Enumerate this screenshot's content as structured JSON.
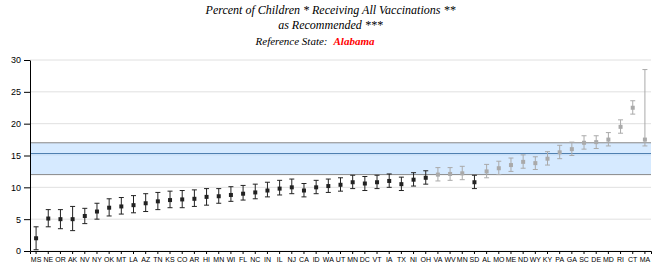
{
  "chart_data": {
    "type": "errorbar",
    "title": "Percent of Children * Receiving All Vaccinations **",
    "subtitle": "as Recommended ***",
    "annotations": [
      {
        "text": "Reference State:"
      },
      {
        "text": "Alabama",
        "color": "red"
      }
    ],
    "categories": [
      "MS",
      "NE",
      "OR",
      "AK",
      "NV",
      "NY",
      "OK",
      "MT",
      "LA",
      "AZ",
      "TN",
      "KS",
      "CO",
      "AR",
      "HI",
      "MN",
      "WI",
      "FL",
      "NC",
      "IN",
      "IL",
      "NJ",
      "CA",
      "ID",
      "WA",
      "UT",
      "MN",
      "DC",
      "VT",
      "IA",
      "TX",
      "NI",
      "OH",
      "VA",
      "WV",
      "MN",
      "SD",
      "AL",
      "MO",
      "ME",
      "ND",
      "WY",
      "KY",
      "PA",
      "GA",
      "SC",
      "DE",
      "MD",
      "RI",
      "CT",
      "MA"
    ],
    "values": [
      2.0,
      5.1,
      5.0,
      5.0,
      5.5,
      6.2,
      6.8,
      7.0,
      7.2,
      7.5,
      7.8,
      8.0,
      8.1,
      8.2,
      8.5,
      8.6,
      8.8,
      9.0,
      9.2,
      9.5,
      9.8,
      10.0,
      9.5,
      10.0,
      10.2,
      10.4,
      10.8,
      10.6,
      10.8,
      11.0,
      10.5,
      11.2,
      11.5,
      12.0,
      12.1,
      12.2,
      10.8,
      12.5,
      13.0,
      13.5,
      14.0,
      13.8,
      14.5,
      15.5,
      16.0,
      17.0,
      17.1,
      17.5,
      19.5,
      22.5,
      17.5
    ],
    "ci_lower": [
      0.2,
      3.8,
      3.5,
      3.2,
      4.3,
      5.0,
      5.5,
      5.8,
      6.0,
      6.2,
      6.5,
      6.8,
      6.8,
      7.0,
      7.2,
      7.5,
      7.8,
      8.0,
      8.2,
      8.5,
      8.8,
      9.0,
      8.5,
      9.0,
      9.2,
      9.4,
      9.8,
      9.5,
      9.8,
      10.0,
      9.5,
      10.2,
      10.5,
      11.0,
      11.1,
      11.2,
      9.8,
      11.5,
      12.0,
      12.5,
      13.0,
      12.8,
      13.5,
      14.5,
      15.0,
      16.0,
      16.1,
      16.5,
      18.5,
      21.5,
      16.5
    ],
    "ci_upper": [
      3.8,
      6.5,
      6.5,
      7.0,
      6.7,
      7.5,
      8.2,
      8.4,
      8.7,
      9.0,
      9.2,
      9.4,
      9.5,
      9.6,
      9.8,
      9.8,
      10.1,
      10.3,
      10.5,
      10.8,
      11.1,
      11.3,
      10.6,
      11.1,
      11.3,
      11.5,
      11.9,
      11.7,
      11.9,
      12.1,
      11.6,
      12.3,
      12.6,
      13.1,
      13.1,
      13.3,
      11.9,
      13.6,
      14.1,
      14.6,
      15.1,
      14.8,
      15.6,
      16.6,
      17.1,
      18.1,
      18.1,
      18.6,
      20.6,
      23.6,
      28.5
    ],
    "colors": [
      "#222222",
      "#222222",
      "#222222",
      "#222222",
      "#222222",
      "#222222",
      "#222222",
      "#222222",
      "#222222",
      "#222222",
      "#222222",
      "#222222",
      "#222222",
      "#222222",
      "#222222",
      "#222222",
      "#222222",
      "#222222",
      "#222222",
      "#222222",
      "#222222",
      "#222222",
      "#222222",
      "#222222",
      "#222222",
      "#222222",
      "#222222",
      "#222222",
      "#222222",
      "#222222",
      "#222222",
      "#222222",
      "#222222",
      "#aaaaaa",
      "#aaaaaa",
      "#aaaaaa",
      "#222222",
      "#aaaaaa",
      "#aaaaaa",
      "#aaaaaa",
      "#aaaaaa",
      "#aaaaaa",
      "#aaaaaa",
      "#aaaaaa",
      "#aaaaaa",
      "#aaaaaa",
      "#aaaaaa",
      "#aaaaaa",
      "#aaaaaa",
      "#aaaaaa",
      "#aaaaaa"
    ],
    "reference_band": {
      "lower": 12.0,
      "upper": 17.0,
      "color": "#cce5ff",
      "edge_color": "#888888"
    },
    "reference_line": {
      "value": 15.3,
      "color": "#4477aa"
    },
    "ylim": [
      0,
      30
    ],
    "yticks": [
      0,
      5,
      10,
      15,
      20,
      25,
      30
    ],
    "grid": true
  }
}
